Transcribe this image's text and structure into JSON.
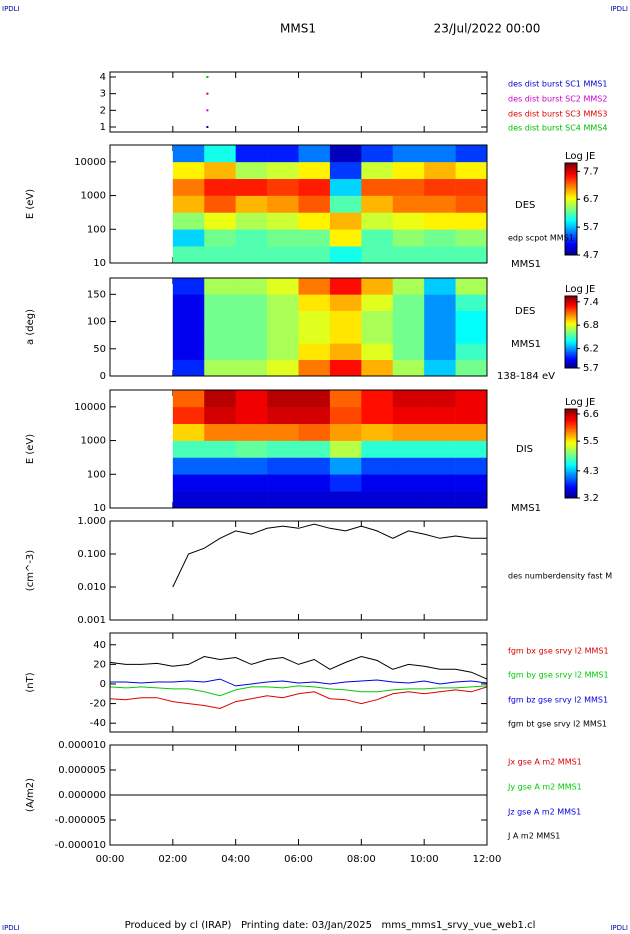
{
  "header": {
    "corner": "IPDLI",
    "title": "MMS1",
    "date": "23/Jul/2022 00:00"
  },
  "footer": "Produced by cl (IRAP)   Printing date: 03/Jan/2025   mms_mms1_srvy_vue_web1.cl",
  "chart_data": [
    {
      "type": "scatter",
      "x": [
        3.1
      ],
      "ylim": [
        0.7,
        4.3
      ],
      "yticks": [
        1,
        2,
        3,
        4
      ],
      "series": [
        {
          "name": "des dist burst SC1 MMS1",
          "color": "#0000cc",
          "values": [
            1
          ]
        },
        {
          "name": "des dist burst SC2 MMS2",
          "color": "#cc00cc",
          "values": [
            2
          ]
        },
        {
          "name": "des dist burst SC3 MMS3",
          "color": "#dd0000",
          "values": [
            3
          ]
        },
        {
          "name": "des dist burst SC4 MMS4",
          "color": "#00bb00",
          "values": [
            4
          ]
        }
      ]
    },
    {
      "type": "heatmap",
      "ylabel": "E (eV)",
      "ylog": true,
      "ylim": [
        10,
        31600
      ],
      "yticks": [
        10,
        100,
        1000,
        10000
      ],
      "x_edges": [
        2,
        3,
        4,
        5,
        6,
        7,
        8,
        9,
        10,
        11,
        12
      ],
      "y_edges": [
        10,
        31.6,
        100,
        316,
        1000,
        3160,
        10000,
        31600
      ],
      "z": [
        [
          6.2,
          6.2,
          6.2,
          6.2,
          6.2,
          6.0,
          6.2,
          6.2,
          6.2,
          6.2
        ],
        [
          5.8,
          6.3,
          6.2,
          6.3,
          6.3,
          6.8,
          6.2,
          6.4,
          6.3,
          6.4
        ],
        [
          6.4,
          6.7,
          6.5,
          6.6,
          6.8,
          7.0,
          6.6,
          6.7,
          6.8,
          6.8
        ],
        [
          7.0,
          7.3,
          7.0,
          7.1,
          7.3,
          6.2,
          7.0,
          7.2,
          7.2,
          7.3
        ],
        [
          7.2,
          7.5,
          7.5,
          7.4,
          7.5,
          5.8,
          7.3,
          7.3,
          7.4,
          7.4
        ],
        [
          6.8,
          7.0,
          6.5,
          6.6,
          6.8,
          5.3,
          6.6,
          6.8,
          7.0,
          6.8
        ],
        [
          5.5,
          6.0,
          5.2,
          5.2,
          5.5,
          4.9,
          5.3,
          5.5,
          5.5,
          5.3
        ]
      ],
      "colorbar_title": "Log JE",
      "zlim": [
        4.7,
        8.0
      ],
      "zticks": [
        4.7,
        5.7,
        6.7,
        7.7
      ],
      "annotations": [
        "DES",
        "edp scpot MMS1",
        "MMS1"
      ]
    },
    {
      "type": "heatmap",
      "ylabel": "a (deg)",
      "ylog": false,
      "ylim": [
        0,
        180
      ],
      "yticks": [
        0,
        50,
        100,
        150
      ],
      "x_edges": [
        2,
        3,
        4,
        5,
        6,
        7,
        8,
        9,
        10,
        11,
        12
      ],
      "y_edges": [
        0,
        30,
        60,
        90,
        120,
        150,
        180
      ],
      "z": [
        [
          6.0,
          6.7,
          6.7,
          6.8,
          7.1,
          7.3,
          7.0,
          6.7,
          6.3,
          6.6
        ],
        [
          5.9,
          6.6,
          6.6,
          6.7,
          6.9,
          7.0,
          6.8,
          6.6,
          6.2,
          6.5
        ],
        [
          5.9,
          6.6,
          6.6,
          6.7,
          6.8,
          6.9,
          6.7,
          6.6,
          6.2,
          6.4
        ],
        [
          5.9,
          6.6,
          6.6,
          6.7,
          6.8,
          6.9,
          6.7,
          6.6,
          6.2,
          6.4
        ],
        [
          5.9,
          6.6,
          6.6,
          6.7,
          6.9,
          7.0,
          6.8,
          6.6,
          6.2,
          6.5
        ],
        [
          6.0,
          6.7,
          6.7,
          6.8,
          7.1,
          7.3,
          7.0,
          6.7,
          6.3,
          6.7
        ]
      ],
      "colorbar_title": "Log JE",
      "zlim": [
        5.7,
        7.55
      ],
      "zticks": [
        5.7,
        6.2,
        6.8,
        7.4
      ],
      "annotations": [
        "DES",
        "MMS1",
        "138-184 eV"
      ]
    },
    {
      "type": "heatmap",
      "ylabel": "E (eV)",
      "ylog": true,
      "ylim": [
        10,
        31600
      ],
      "yticks": [
        10,
        100,
        1000,
        10000
      ],
      "x_edges": [
        2,
        3,
        4,
        5,
        6,
        7,
        8,
        9,
        10,
        11,
        12
      ],
      "y_edges": [
        10,
        31.6,
        100,
        316,
        1000,
        3160,
        10000,
        31600
      ],
      "z": [
        [
          3.5,
          3.5,
          3.5,
          3.5,
          3.5,
          3.5,
          3.5,
          3.5,
          3.5,
          3.5
        ],
        [
          3.6,
          3.6,
          3.6,
          3.6,
          3.6,
          3.8,
          3.6,
          3.6,
          3.6,
          3.6
        ],
        [
          4.0,
          4.0,
          4.0,
          3.9,
          3.9,
          4.2,
          3.9,
          3.9,
          3.9,
          3.9
        ],
        [
          4.8,
          4.8,
          4.9,
          4.8,
          4.8,
          5.2,
          4.7,
          4.7,
          4.7,
          4.7
        ],
        [
          5.6,
          5.9,
          5.9,
          5.9,
          6.0,
          5.8,
          5.7,
          5.8,
          5.8,
          5.8
        ],
        [
          6.2,
          6.5,
          6.4,
          6.5,
          6.5,
          6.1,
          6.3,
          6.4,
          6.4,
          6.4
        ],
        [
          6.0,
          6.6,
          6.4,
          6.6,
          6.6,
          6.0,
          6.3,
          6.5,
          6.5,
          6.4
        ]
      ],
      "colorbar_title": "Log JE",
      "zlim": [
        3.2,
        6.8
      ],
      "zticks": [
        3.2,
        4.3,
        5.5,
        6.6
      ],
      "annotations": [
        "DIS",
        "MMS1"
      ]
    },
    {
      "type": "line",
      "ylabel": "(cm^-3)",
      "ylog": true,
      "ylim": [
        0.001,
        1
      ],
      "yticks": [
        {
          "value": 1,
          "label": "1.000"
        },
        {
          "value": 0.1,
          "label": "0.100"
        },
        {
          "value": 0.01,
          "label": "0.010"
        },
        {
          "value": 0.001,
          "label": "0.001"
        }
      ],
      "x": [
        2,
        2.5,
        3,
        3.5,
        4,
        4.5,
        5,
        5.5,
        6,
        6.5,
        7,
        7.5,
        8,
        8.5,
        9,
        9.5,
        10,
        10.5,
        11,
        11.5,
        12
      ],
      "series": [
        {
          "name": "des numberdensity fast M",
          "color": "#000000",
          "values": [
            0.01,
            0.1,
            0.15,
            0.3,
            0.5,
            0.4,
            0.6,
            0.7,
            0.6,
            0.8,
            0.6,
            0.5,
            0.7,
            0.5,
            0.3,
            0.5,
            0.4,
            0.3,
            0.35,
            0.3,
            0.3
          ]
        }
      ]
    },
    {
      "type": "line",
      "ylabel": "(nT)",
      "ylog": false,
      "ylim": [
        -49,
        52
      ],
      "yticks": [
        -40,
        -20,
        0,
        20,
        40
      ],
      "x": [
        0,
        0.5,
        1,
        1.5,
        2,
        2.5,
        3,
        3.5,
        4,
        4.5,
        5,
        5.5,
        6,
        6.5,
        7,
        7.5,
        8,
        8.5,
        9,
        9.5,
        10,
        10.5,
        11,
        11.5,
        12
      ],
      "series": [
        {
          "name": "fgm bx gse srvy l2 MMS1",
          "color": "#dd0000",
          "values": [
            -15,
            -16,
            -14,
            -14,
            -18,
            -20,
            -22,
            -25,
            -18,
            -15,
            -12,
            -14,
            -10,
            -8,
            -15,
            -16,
            -20,
            -16,
            -10,
            -8,
            -10,
            -8,
            -6,
            -8,
            -3
          ]
        },
        {
          "name": "fgm by gse srvy l2 MMS1",
          "color": "#00cc00",
          "values": [
            -3,
            -4,
            -3,
            -4,
            -5,
            -5,
            -8,
            -12,
            -6,
            -3,
            -3,
            -4,
            -2,
            -3,
            -5,
            -6,
            -8,
            -8,
            -6,
            -5,
            -5,
            -4,
            -4,
            -3,
            -2
          ]
        },
        {
          "name": "fgm bz gse srvy l2 MMS1",
          "color": "#0000dd",
          "values": [
            2,
            2,
            1,
            2,
            2,
            3,
            2,
            5,
            -2,
            0,
            2,
            3,
            1,
            2,
            0,
            2,
            3,
            4,
            2,
            1,
            3,
            0,
            2,
            3,
            1
          ]
        },
        {
          "name": "fgm bt gse srvy l2 MMS1",
          "color": "#000000",
          "values": [
            22,
            20,
            20,
            21,
            18,
            20,
            28,
            25,
            27,
            20,
            25,
            27,
            20,
            25,
            15,
            22,
            28,
            24,
            15,
            20,
            18,
            15,
            15,
            12,
            5
          ]
        }
      ]
    },
    {
      "type": "line",
      "ylabel": "(A/m2)",
      "ylog": false,
      "ylim": [
        -1e-05,
        1e-05
      ],
      "yticks": [
        {
          "value": 1e-05,
          "label": "0.000010"
        },
        {
          "value": 5e-06,
          "label": "0.000005"
        },
        {
          "value": 0,
          "label": "0.000000"
        },
        {
          "value": -5e-06,
          "label": "-0.000005"
        },
        {
          "value": -1e-05,
          "label": "-0.000010"
        }
      ],
      "x": [
        0,
        2,
        4,
        6,
        8,
        10,
        12
      ],
      "series": [
        {
          "name": "Jx gse A m2 MMS1",
          "color": "#dd0000",
          "values": [
            0,
            0,
            0,
            0,
            0,
            0,
            0
          ]
        },
        {
          "name": "Jy gse A m2 MMS1",
          "color": "#00cc00",
          "values": [
            0,
            0,
            0,
            0,
            0,
            0,
            0
          ]
        },
        {
          "name": "Jz gse A m2 MMS1",
          "color": "#0000dd",
          "values": [
            0,
            0,
            0,
            0,
            0,
            0,
            0
          ]
        },
        {
          "name": "J A m2 MMS1",
          "color": "#000000",
          "values": [
            0,
            0,
            0,
            0,
            0,
            0,
            0
          ]
        }
      ],
      "xlim": [
        0,
        12
      ],
      "xticks": [
        {
          "value": 0,
          "label": "00:00"
        },
        {
          "value": 2,
          "label": "02:00"
        },
        {
          "value": 4,
          "label": "04:00"
        },
        {
          "value": 6,
          "label": "06:00"
        },
        {
          "value": 8,
          "label": "08:00"
        },
        {
          "value": 10,
          "label": "10:00"
        },
        {
          "value": 12,
          "label": "12:00"
        }
      ]
    }
  ]
}
